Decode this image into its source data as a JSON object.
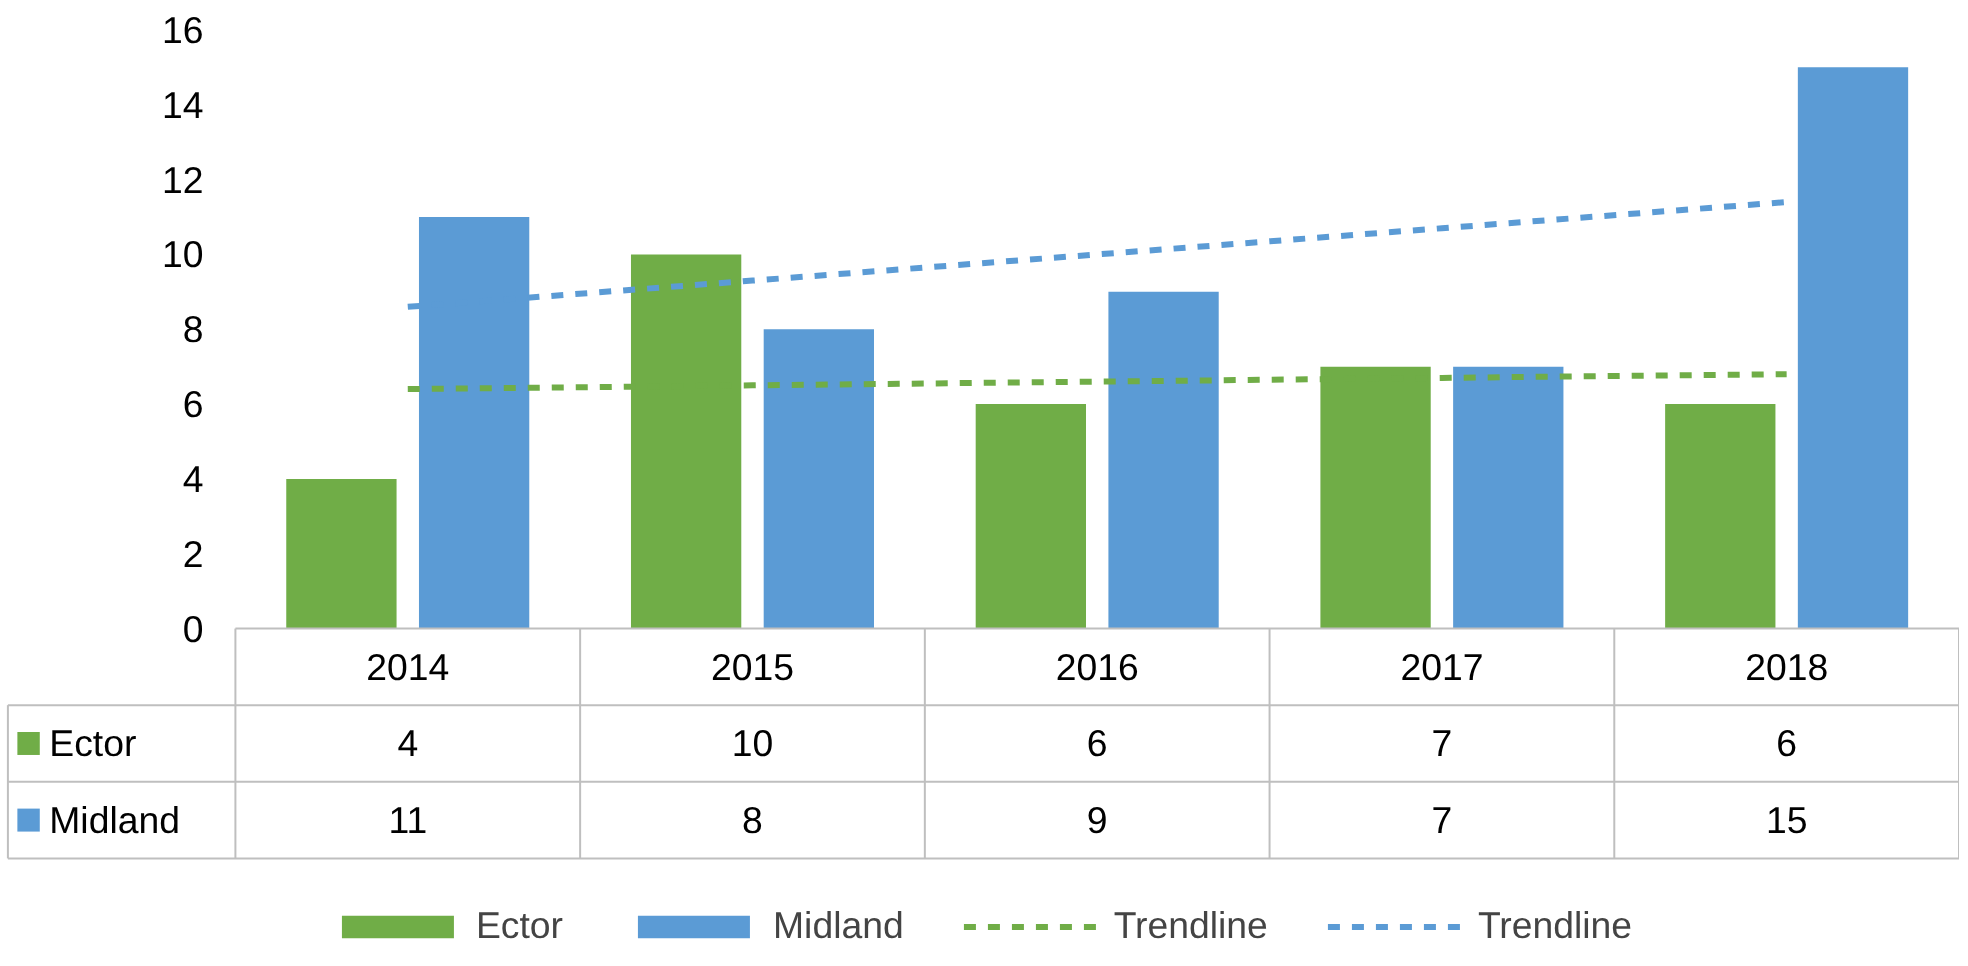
{
  "chart_data": {
    "type": "bar",
    "categories": [
      "2014",
      "2015",
      "2016",
      "2017",
      "2018"
    ],
    "series": [
      {
        "name": "Ector",
        "color": "#70ad47",
        "values": [
          4,
          10,
          6,
          7,
          6
        ],
        "value_labels": [
          "4",
          "10",
          "6",
          "7",
          "6"
        ]
      },
      {
        "name": "Midland",
        "color": "#5b9bd5",
        "values": [
          11,
          8,
          9,
          7,
          15
        ],
        "value_labels": [
          "11",
          "8",
          "9",
          "7",
          "15"
        ]
      },
      {
        "name": "Trendline",
        "type": "line",
        "line_style": "dashed",
        "color": "#70ad47",
        "values": [
          6.4,
          6.5,
          6.6,
          6.7,
          6.8
        ]
      },
      {
        "name": "Trendline",
        "type": "line",
        "line_style": "dashed",
        "color": "#5b9bd5",
        "values": [
          8.6,
          9.3,
          10.0,
          10.7,
          11.4
        ]
      }
    ],
    "ylim": [
      0,
      16
    ],
    "yticks": [
      0,
      2,
      4,
      6,
      8,
      10,
      12,
      14,
      16
    ],
    "legend": "bottom"
  }
}
